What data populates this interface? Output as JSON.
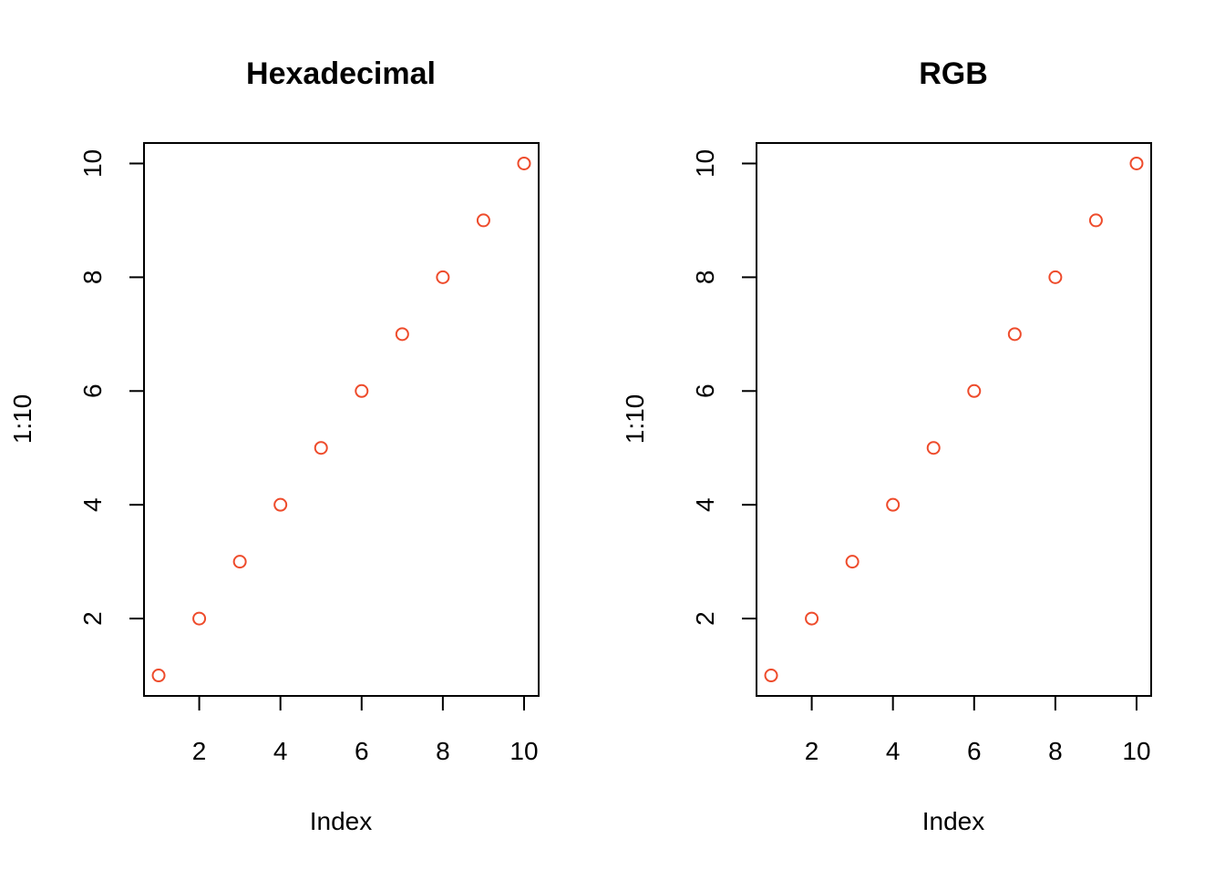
{
  "chart_data": [
    {
      "type": "scatter",
      "title": "Hexadecimal",
      "xlabel": "Index",
      "ylabel": "1:10",
      "x": [
        1,
        2,
        3,
        4,
        5,
        6,
        7,
        8,
        9,
        10
      ],
      "y": [
        1,
        2,
        3,
        4,
        5,
        6,
        7,
        8,
        9,
        10
      ],
      "xlim": [
        0.64,
        10.36
      ],
      "ylim": [
        0.64,
        10.36
      ],
      "xticks": [
        2,
        4,
        6,
        8,
        10
      ],
      "yticks": [
        2,
        4,
        6,
        8,
        10
      ],
      "xtick_labels": [
        "2",
        "4",
        "6",
        "8",
        "10"
      ],
      "ytick_labels": [
        "2",
        "4",
        "6",
        "8",
        "10"
      ],
      "marker": "open-circle",
      "color": "#EE4B2B",
      "grid": false
    },
    {
      "type": "scatter",
      "title": "RGB",
      "xlabel": "Index",
      "ylabel": "1:10",
      "x": [
        1,
        2,
        3,
        4,
        5,
        6,
        7,
        8,
        9,
        10
      ],
      "y": [
        1,
        2,
        3,
        4,
        5,
        6,
        7,
        8,
        9,
        10
      ],
      "xlim": [
        0.64,
        10.36
      ],
      "ylim": [
        0.64,
        10.36
      ],
      "xticks": [
        2,
        4,
        6,
        8,
        10
      ],
      "yticks": [
        2,
        4,
        6,
        8,
        10
      ],
      "xtick_labels": [
        "2",
        "4",
        "6",
        "8",
        "10"
      ],
      "ytick_labels": [
        "2",
        "4",
        "6",
        "8",
        "10"
      ],
      "marker": "open-circle",
      "color": "#EE4B2B",
      "grid": false
    }
  ]
}
